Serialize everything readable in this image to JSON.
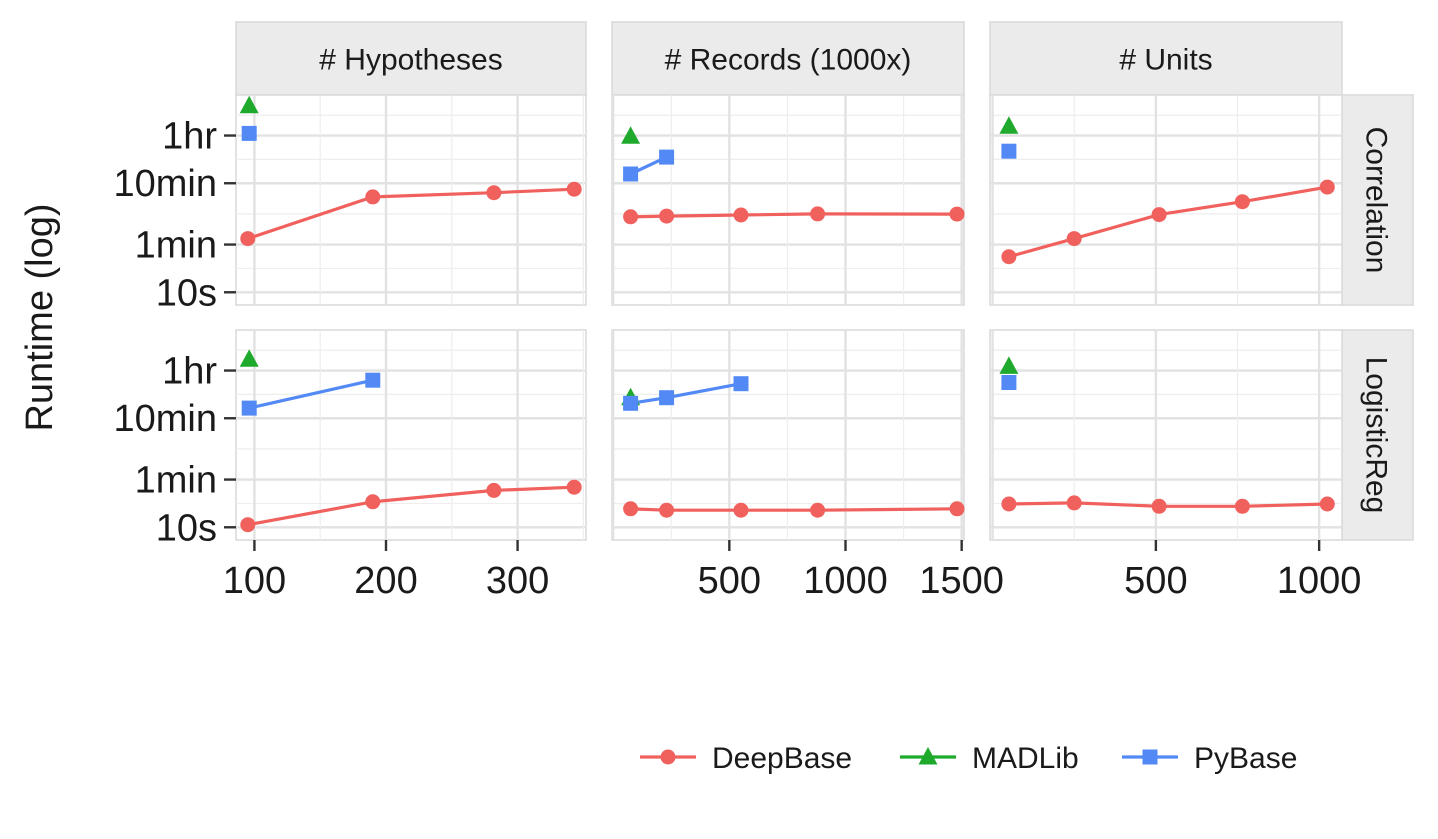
{
  "chart_data": {
    "type": "line",
    "ylabel": "Runtime (log)",
    "y_scale": "log",
    "y_unit": "seconds",
    "yticks": [
      {
        "value": 10,
        "label": "10s"
      },
      {
        "value": 60,
        "label": "1min"
      },
      {
        "value": 600,
        "label": "10min"
      },
      {
        "value": 3600,
        "label": "1hr"
      }
    ],
    "facet_columns": [
      "# Hypotheses",
      "# Records (1000x)",
      "# Units"
    ],
    "facet_rows": [
      "Correlation",
      "LogisticReg"
    ],
    "xticks": [
      [
        {
          "value": 100,
          "label": "100"
        },
        {
          "value": 200,
          "label": "200"
        },
        {
          "value": 300,
          "label": "300"
        }
      ],
      [
        {
          "value": 500,
          "label": "500"
        },
        {
          "value": 1000,
          "label": "1000"
        },
        {
          "value": 1500,
          "label": "1500"
        }
      ],
      [
        {
          "value": 500,
          "label": "500"
        },
        {
          "value": 1000,
          "label": "1000"
        }
      ]
    ],
    "legend": {
      "position": "bottom",
      "entries": [
        "DeepBase",
        "MADLib",
        "PyBase"
      ]
    },
    "colors": {
      "DeepBase": "#F0615E",
      "MADLib": "#1FAA2E",
      "PyBase": "#5289F5"
    },
    "markers": {
      "DeepBase": "circle",
      "MADLib": "triangle",
      "PyBase": "square"
    },
    "grid": true,
    "panels": [
      {
        "row": "Correlation",
        "col": "# Hypotheses",
        "series": [
          {
            "name": "DeepBase",
            "points": [
              [
                95,
                75
              ],
              [
                190,
                360
              ],
              [
                282,
                420
              ],
              [
                343,
                480
              ]
            ]
          },
          {
            "name": "MADLib",
            "points": [
              [
                96,
                11000
              ]
            ]
          },
          {
            "name": "PyBase",
            "points": [
              [
                96,
                3900
              ]
            ]
          }
        ]
      },
      {
        "row": "Correlation",
        "col": "# Records (1000x)",
        "series": [
          {
            "name": "DeepBase",
            "points": [
              [
                75,
                170
              ],
              [
                230,
                175
              ],
              [
                550,
                182
              ],
              [
                880,
                190
              ],
              [
                1480,
                188
              ]
            ]
          },
          {
            "name": "MADLib",
            "points": [
              [
                75,
                3500
              ]
            ]
          },
          {
            "name": "PyBase",
            "points": [
              [
                75,
                850
              ],
              [
                230,
                1600
              ]
            ]
          }
        ]
      },
      {
        "row": "Correlation",
        "col": "# Units",
        "series": [
          {
            "name": "DeepBase",
            "points": [
              [
                50,
                38
              ],
              [
                250,
                75
              ],
              [
                510,
                185
              ],
              [
                765,
                300
              ],
              [
                1025,
                520
              ]
            ]
          },
          {
            "name": "MADLib",
            "points": [
              [
                50,
                5100
              ]
            ]
          },
          {
            "name": "PyBase",
            "points": [
              [
                50,
                2000
              ]
            ]
          }
        ]
      },
      {
        "row": "LogisticReg",
        "col": "# Hypotheses",
        "series": [
          {
            "name": "DeepBase",
            "points": [
              [
                95,
                11
              ],
              [
                190,
                26
              ],
              [
                282,
                40
              ],
              [
                343,
                45
              ]
            ]
          },
          {
            "name": "MADLib",
            "points": [
              [
                96,
                5500
              ]
            ]
          },
          {
            "name": "PyBase",
            "points": [
              [
                96,
                880
              ],
              [
                190,
                2500
              ]
            ]
          }
        ]
      },
      {
        "row": "LogisticReg",
        "col": "# Records (1000x)",
        "series": [
          {
            "name": "DeepBase",
            "points": [
              [
                75,
                20
              ],
              [
                230,
                19
              ],
              [
                550,
                19
              ],
              [
                880,
                19
              ],
              [
                1480,
                20
              ]
            ]
          },
          {
            "name": "MADLib",
            "points": [
              [
                75,
                1300
              ]
            ]
          },
          {
            "name": "PyBase",
            "points": [
              [
                75,
                1050
              ],
              [
                230,
                1300
              ],
              [
                550,
                2200
              ]
            ]
          }
        ]
      },
      {
        "row": "LogisticReg",
        "col": "# Units",
        "series": [
          {
            "name": "DeepBase",
            "points": [
              [
                50,
                24
              ],
              [
                250,
                25
              ],
              [
                510,
                22
              ],
              [
                765,
                22
              ],
              [
                1025,
                24
              ]
            ]
          },
          {
            "name": "MADLib",
            "points": [
              [
                50,
                4200
              ]
            ]
          },
          {
            "name": "PyBase",
            "points": [
              [
                50,
                2300
              ]
            ]
          }
        ]
      }
    ]
  }
}
